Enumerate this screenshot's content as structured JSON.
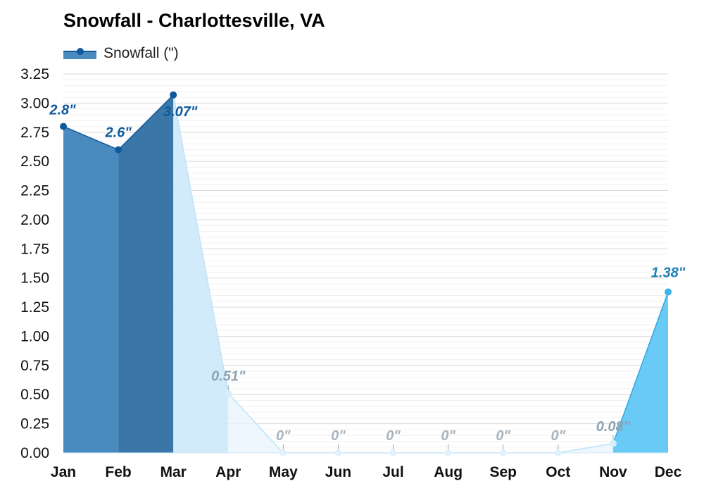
{
  "chart_data": {
    "type": "area",
    "title": "Snowfall - Charlottesville, VA",
    "xlabel": "",
    "ylabel": "",
    "ylim": [
      0,
      3.25
    ],
    "yticks": [
      "0.00",
      "0.25",
      "0.50",
      "0.75",
      "1.00",
      "1.25",
      "1.50",
      "1.75",
      "2.00",
      "2.25",
      "2.50",
      "2.75",
      "3.00",
      "3.25"
    ],
    "categories": [
      "Jan",
      "Feb",
      "Mar",
      "Apr",
      "May",
      "Jun",
      "Jul",
      "Aug",
      "Sep",
      "Oct",
      "Nov",
      "Dec"
    ],
    "series": [
      {
        "name": "Snowfall (\")",
        "values": [
          2.8,
          2.6,
          3.07,
          0.51,
          0,
          0,
          0,
          0,
          0,
          0,
          0.08,
          1.38
        ],
        "labels": [
          "2.8\"",
          "2.6\"",
          "3.07\"",
          "0.51\"",
          "0\"",
          "0\"",
          "0\"",
          "0\"",
          "0\"",
          "0\"",
          "0.08\"",
          "1.38\""
        ]
      }
    ],
    "grid": true,
    "legend": "top-left",
    "colors": {
      "high": "#4a8bbf",
      "high_dark": "#3b76a8",
      "low": "#cde9fb",
      "low_light": "#e8f5fd",
      "dec": "#69cbf5",
      "line_dark": "#0f5a9c",
      "line_light": "#bfe3f8",
      "line_dec": "#2ea8e0",
      "label_dark": "#0f5a9c",
      "label_grey": "#8fa3b3",
      "label_dec": "#1f7fb4"
    }
  }
}
